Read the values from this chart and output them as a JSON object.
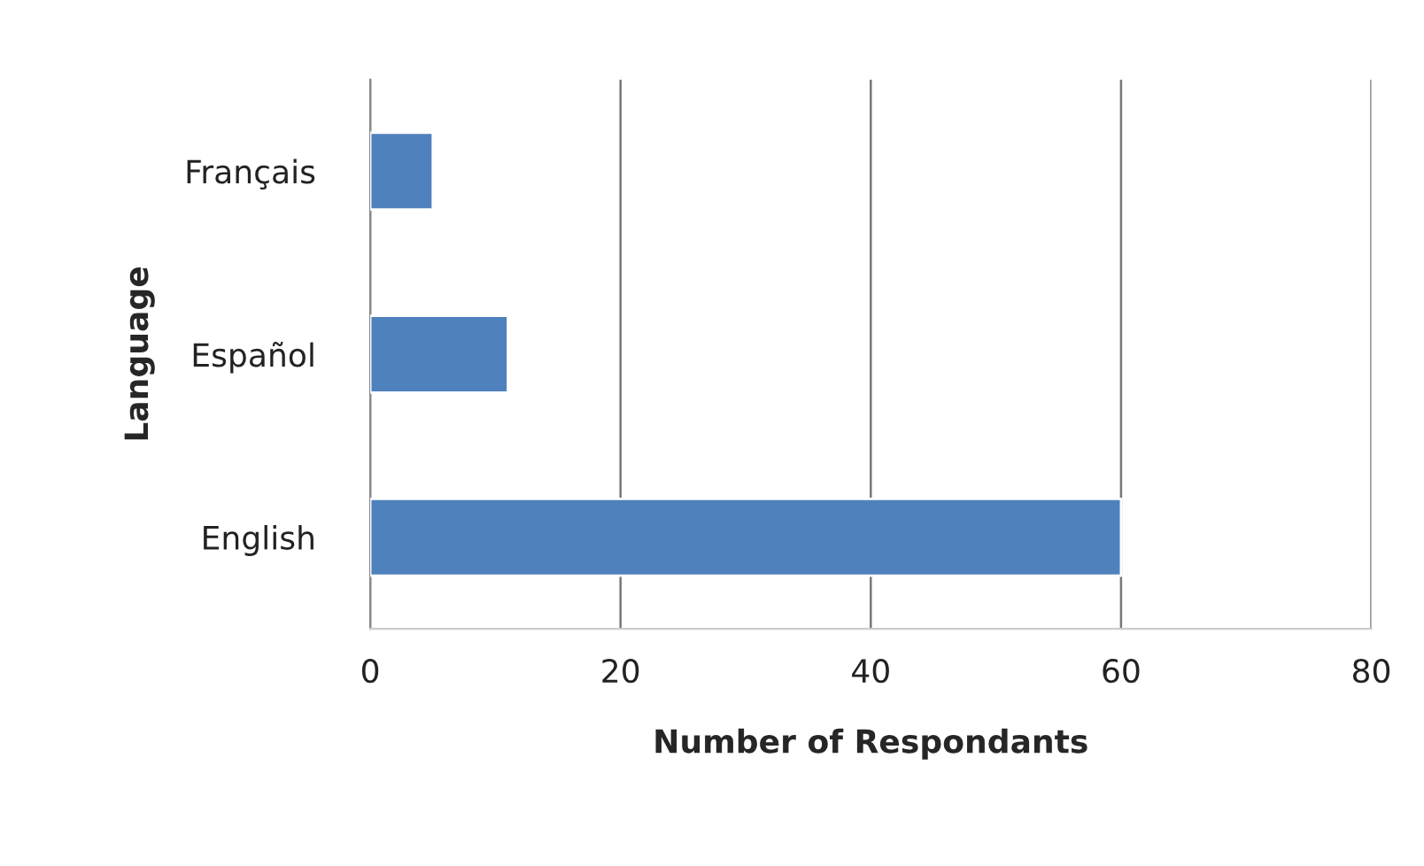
{
  "chart_data": {
    "type": "bar",
    "orientation": "horizontal",
    "categories": [
      "Français",
      "Español",
      "English"
    ],
    "values": [
      5,
      11,
      60
    ],
    "color": "#4f81bd",
    "xlim": [
      0,
      80
    ],
    "xticks": [
      0,
      20,
      40,
      60,
      80
    ],
    "xlabel": "Number of Respondants",
    "ylabel": "Language",
    "grid": "x",
    "legend": false
  }
}
